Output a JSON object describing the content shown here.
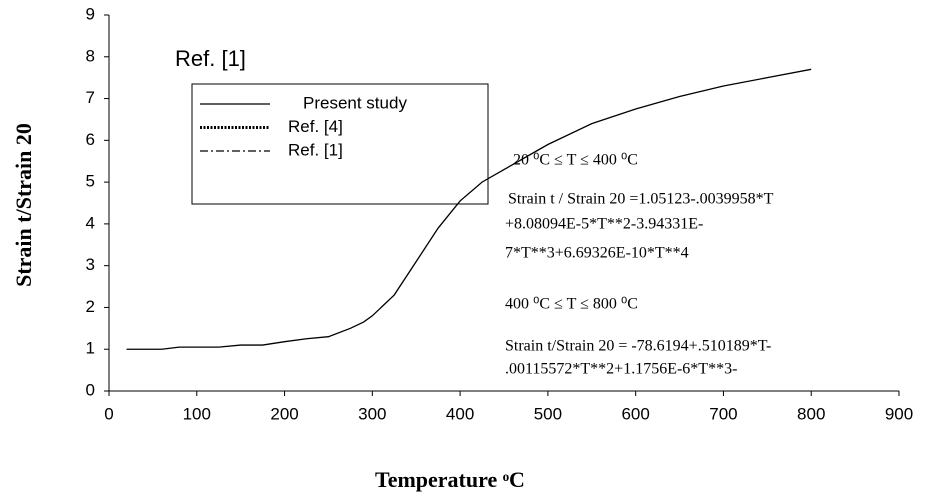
{
  "chart_data": {
    "type": "line",
    "x_label": "Temperature ᵒC",
    "y_label": "Strain t/Strain 20",
    "x": [
      20,
      60,
      80,
      100,
      125,
      150,
      175,
      200,
      225,
      250,
      275,
      290,
      300,
      325,
      350,
      375,
      400,
      425,
      450,
      500,
      550,
      600,
      650,
      700,
      750,
      800
    ],
    "series": [
      {
        "name": "Present study",
        "color": "#000000",
        "values": [
          1.0,
          1.0,
          1.05,
          1.05,
          1.05,
          1.1,
          1.1,
          1.18,
          1.25,
          1.3,
          1.5,
          1.65,
          1.8,
          2.3,
          3.1,
          3.9,
          4.55,
          5.0,
          5.3,
          5.9,
          6.4,
          6.75,
          7.05,
          7.3,
          7.5,
          7.7
        ]
      }
    ],
    "legend_entries": [
      {
        "label": "Present study",
        "style": "solid"
      },
      {
        "label": "Ref. [4]",
        "style": "dotted"
      },
      {
        "label": "Ref. [1]",
        "style": "dashdot"
      }
    ],
    "annotations": [
      "Ref. [1]",
      "20 ⁰C ≤ T ≤ 400 ⁰C",
      "Strain t / Strain 20 =1.05123-.0039958*T",
      "+8.08094E-5*T**2-3.94331E-",
      "7*T**3+6.69326E-10*T**4",
      "400 ⁰C ≤ T ≤ 800 ⁰C",
      "Strain t/Strain 20 = -78.6194+.510189*T-",
      ".00115572*T**2+1.1756E-6*T**3-"
    ],
    "xlim": [
      0,
      900
    ],
    "xticks": [
      0,
      100,
      200,
      300,
      400,
      500,
      600,
      700,
      800,
      900
    ],
    "ylim": [
      0,
      9
    ],
    "yticks": [
      0,
      1,
      2,
      3,
      4,
      5,
      6,
      7,
      8,
      9
    ],
    "grid": false
  }
}
